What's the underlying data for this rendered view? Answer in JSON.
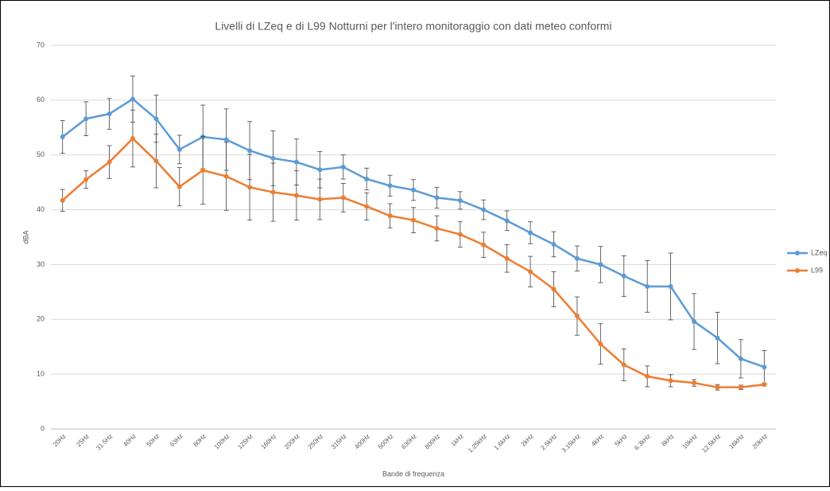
{
  "chart_data": {
    "type": "line",
    "title": "Livelli di LZeq e di L99 Notturni per l'intero monitoraggio con dati meteo conformi",
    "x_label": "Bande di frequenza",
    "y_label": "dBA",
    "categories": [
      "20Hz",
      "25Hz",
      "31.5Hz",
      "40Hz",
      "50Hz",
      "63Hz",
      "80Hz",
      "100Hz",
      "125Hz",
      "160Hz",
      "200Hz",
      "250Hz",
      "315Hz",
      "400Hz",
      "500Hz",
      "630Hz",
      "800Hz",
      "1kHz",
      "1.25kHz",
      "1.6kHz",
      "2kHz",
      "2.5kHz",
      "3.15kHz",
      "4kHz",
      "5kHz",
      "6.3kHz",
      "8kHz",
      "10kHz",
      "12.5kHz",
      "16kHz",
      "20kHz"
    ],
    "series": [
      {
        "name": "LZeq",
        "color": "#5b9bd5",
        "values": [
          53.3,
          56.6,
          57.5,
          60.2,
          56.6,
          51.0,
          53.3,
          52.8,
          50.8,
          49.4,
          48.7,
          47.3,
          47.8,
          45.6,
          44.4,
          43.6,
          42.2,
          41.7,
          40.0,
          38.0,
          35.8,
          33.7,
          31.1,
          30.0,
          27.9,
          26.0,
          26.0,
          19.6,
          16.6,
          12.8,
          11.3
        ],
        "errors": [
          3.0,
          3.1,
          2.8,
          4.2,
          4.3,
          2.6,
          5.8,
          5.6,
          5.3,
          5.0,
          4.2,
          3.3,
          2.2,
          2.0,
          1.9,
          1.9,
          1.9,
          1.6,
          1.8,
          1.8,
          2.0,
          2.3,
          2.3,
          3.3,
          3.7,
          4.7,
          6.1,
          5.1,
          4.7,
          3.5,
          3.0
        ]
      },
      {
        "name": "L99",
        "color": "#ed7d31",
        "values": [
          41.7,
          45.5,
          48.7,
          53.0,
          48.9,
          44.2,
          47.2,
          46.1,
          44.1,
          43.2,
          42.6,
          41.9,
          42.2,
          40.6,
          38.9,
          38.1,
          36.6,
          35.5,
          33.6,
          31.1,
          28.7,
          25.5,
          20.6,
          15.5,
          11.7,
          9.6,
          8.8,
          8.4,
          7.6,
          7.6,
          8.1
        ],
        "errors": [
          2.0,
          1.6,
          3.0,
          5.2,
          4.9,
          3.5,
          6.2,
          6.2,
          6.0,
          5.3,
          4.5,
          3.7,
          2.6,
          2.5,
          2.2,
          2.3,
          2.3,
          2.3,
          2.3,
          2.5,
          2.8,
          3.2,
          3.5,
          3.7,
          2.9,
          1.9,
          1.1,
          0.6,
          0.5,
          0.4,
          0.2
        ]
      }
    ],
    "ylim": [
      0,
      70
    ],
    "yticks": [
      0,
      10,
      20,
      30,
      40,
      50,
      60,
      70
    ],
    "grid": true,
    "legend": "right"
  }
}
